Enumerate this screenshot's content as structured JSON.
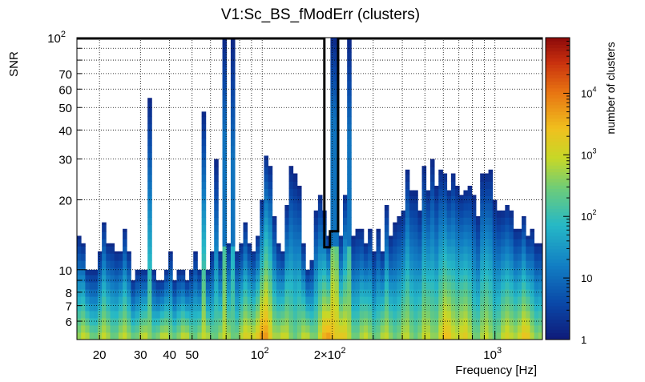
{
  "chart_data": {
    "type": "heatmap",
    "title": "V1:Sc_BS_fModErr (clusters)",
    "xlabel": "Frequency [Hz]",
    "ylabel": "SNR",
    "zlabel": "number of clusters",
    "x_scale": "log",
    "y_scale": "log",
    "z_scale": "log",
    "xlim": [
      16,
      1600
    ],
    "ylim": [
      5,
      100
    ],
    "zlim": [
      1,
      80000
    ],
    "x_ticks": [
      {
        "value": 20,
        "label": "20"
      },
      {
        "value": 30,
        "label": "30"
      },
      {
        "value": 40,
        "label": "40"
      },
      {
        "value": 50,
        "label": "50"
      },
      {
        "value": 100,
        "label": "10",
        "sup": "2"
      },
      {
        "value": 200,
        "label": "2×10",
        "sup": "2"
      },
      {
        "value": 1000,
        "label": "10",
        "sup": "3"
      }
    ],
    "y_ticks": [
      {
        "value": 6,
        "label": "6"
      },
      {
        "value": 7,
        "label": "7"
      },
      {
        "value": 8,
        "label": "8"
      },
      {
        "value": 10,
        "label": "10"
      },
      {
        "value": 20,
        "label": "20"
      },
      {
        "value": 30,
        "label": "30"
      },
      {
        "value": 40,
        "label": "40"
      },
      {
        "value": 50,
        "label": "50"
      },
      {
        "value": 60,
        "label": "60"
      },
      {
        "value": 70,
        "label": "70"
      },
      {
        "value": 100,
        "label": "10",
        "sup": "2"
      }
    ],
    "z_ticks": [
      {
        "value": 1,
        "label": "1"
      },
      {
        "value": 10,
        "label": "10"
      },
      {
        "value": 100,
        "label": "10",
        "sup": "2"
      },
      {
        "value": 1000,
        "label": "10",
        "sup": "3"
      },
      {
        "value": 10000,
        "label": "10",
        "sup": "4"
      }
    ],
    "grid": true,
    "colormap": "kBird",
    "max_snr_per_frequency_bin": [
      14,
      13,
      10,
      10,
      10,
      12,
      16,
      13,
      13,
      12,
      12,
      15,
      12,
      9,
      10,
      10,
      10,
      55,
      10,
      9,
      9,
      10,
      12,
      9,
      10,
      10,
      9,
      10,
      12,
      10,
      48,
      10,
      12,
      30,
      12,
      100,
      13,
      100,
      12,
      13,
      16,
      13,
      12,
      14,
      20,
      31,
      28,
      17,
      13,
      12,
      19,
      28,
      26,
      23,
      13,
      10,
      11,
      18,
      21,
      18,
      14,
      100,
      100,
      14,
      21,
      100,
      14,
      15,
      15,
      13,
      15,
      12,
      15,
      12,
      19,
      14,
      16,
      17,
      18,
      27,
      22,
      22,
      18,
      28,
      22,
      30,
      23,
      27,
      26,
      22,
      26,
      23,
      21,
      22,
      23,
      21,
      17,
      26,
      26,
      27,
      20,
      18,
      18,
      19,
      18,
      15,
      15,
      17,
      14,
      15,
      13,
      13
    ],
    "overlay_contour": {
      "x_range": [
        185,
        212
      ],
      "y_range": [
        12.5,
        100
      ]
    }
  }
}
